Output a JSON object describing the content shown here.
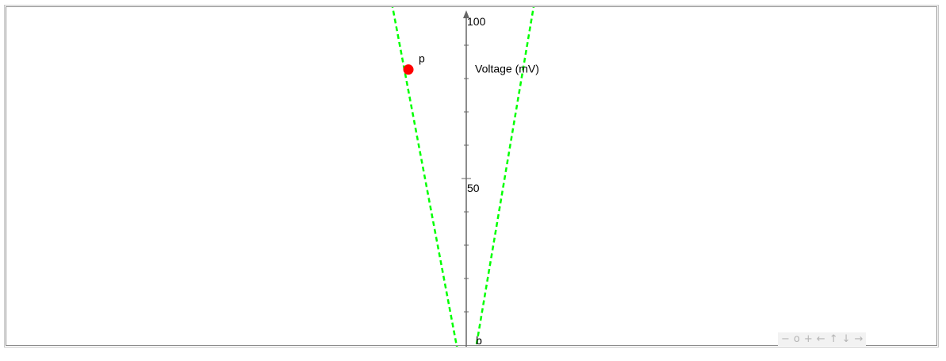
{
  "chart_data": {
    "type": "line",
    "ylabel": "Voltage (mV)",
    "ylim": [
      0,
      100
    ],
    "y_ticks": [
      "100",
      "50"
    ],
    "y_minor_step": 10,
    "grid": false,
    "series": [
      {
        "points": [
          [
            -12.6,
            105
          ],
          [
            -1.4,
            -2
          ]
        ],
        "style": "dashed",
        "color": "#00ff00"
      },
      {
        "points": [
          [
            11.5,
            105
          ],
          [
            1.5,
            -2
          ]
        ],
        "style": "dashed",
        "color": "#00ff00"
      }
    ],
    "points": [
      {
        "name": "p",
        "x": -9.6,
        "y": 82.7,
        "color": "#ff0000"
      }
    ],
    "annotations": [
      {
        "text": "b",
        "x": 1.6,
        "y": 0
      }
    ],
    "xlim": [
      -77.4,
      77.4
    ]
  },
  "navigation": {
    "zoom_out": "−",
    "zoom_reset": "o",
    "zoom_in": "+",
    "left": "←",
    "up": "↑",
    "down": "↓",
    "right": "→"
  }
}
